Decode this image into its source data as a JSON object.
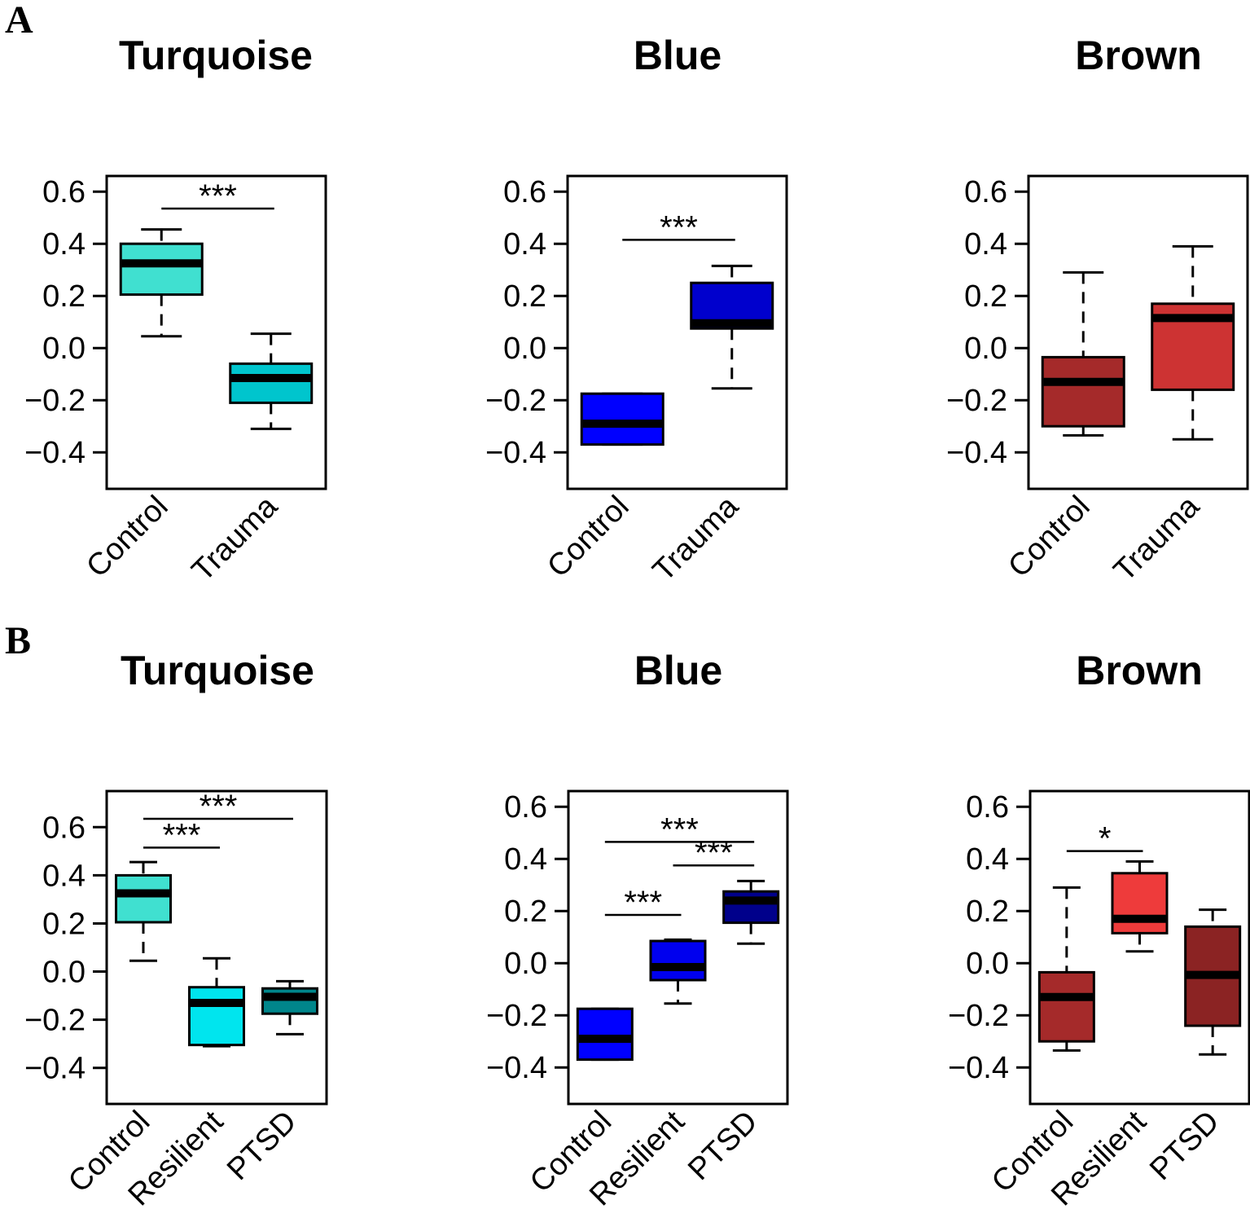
{
  "panels": [
    {
      "label": "A"
    },
    {
      "label": "B"
    }
  ],
  "chart_data": [
    {
      "type": "boxplot",
      "panel": "A",
      "title": "Turquoise",
      "ylim": [
        -0.54,
        0.66
      ],
      "yticks": [
        "0.6",
        "0.4",
        "0.2",
        "0.0",
        "−0.2",
        "−0.4"
      ],
      "ytick_values": [
        0.6,
        0.4,
        0.2,
        0.0,
        -0.2,
        -0.4
      ],
      "categories": [
        "Control",
        "Trauma"
      ],
      "boxes": [
        {
          "min": 0.045,
          "q1": 0.205,
          "median": 0.325,
          "q3": 0.4,
          "max": 0.455,
          "color": "#40E0D0"
        },
        {
          "min": -0.31,
          "q1": -0.21,
          "median": -0.115,
          "q3": -0.06,
          "max": 0.055,
          "color": "#00C5CD"
        }
      ],
      "significance": [
        {
          "from": 0,
          "to": 1,
          "label": "***",
          "y": 0.535
        }
      ]
    },
    {
      "type": "boxplot",
      "panel": "A",
      "title": "Blue",
      "ylim": [
        -0.54,
        0.66
      ],
      "yticks": [
        "0.6",
        "0.4",
        "0.2",
        "0.0",
        "−0.2",
        "−0.4"
      ],
      "ytick_values": [
        0.6,
        0.4,
        0.2,
        0.0,
        -0.2,
        -0.4
      ],
      "categories": [
        "Control",
        "Trauma"
      ],
      "boxes": [
        {
          "min": -0.37,
          "q1": -0.37,
          "median": -0.29,
          "q3": -0.175,
          "max": -0.175,
          "color": "#0000FF"
        },
        {
          "min": -0.155,
          "q1": 0.075,
          "median": 0.095,
          "q3": 0.25,
          "max": 0.315,
          "color": "#0000CD"
        }
      ],
      "significance": [
        {
          "from": 0,
          "to": 1,
          "label": "***",
          "y": 0.415
        }
      ]
    },
    {
      "type": "boxplot",
      "panel": "A",
      "title": "Brown",
      "ylim": [
        -0.54,
        0.66
      ],
      "yticks": [
        "0.6",
        "0.4",
        "0.2",
        "0.0",
        "−0.2",
        "−0.4"
      ],
      "ytick_values": [
        0.6,
        0.4,
        0.2,
        0.0,
        -0.2,
        -0.4
      ],
      "categories": [
        "Control",
        "Trauma"
      ],
      "boxes": [
        {
          "min": -0.335,
          "q1": -0.3,
          "median": -0.13,
          "q3": -0.035,
          "max": 0.29,
          "color": "#A52A2A"
        },
        {
          "min": -0.35,
          "q1": -0.16,
          "median": 0.115,
          "q3": 0.17,
          "max": 0.39,
          "color": "#CD3333"
        }
      ],
      "significance": []
    },
    {
      "type": "boxplot",
      "panel": "B",
      "title": "Turquoise",
      "ylim": [
        -0.55,
        0.75
      ],
      "yticks": [
        "0.6",
        "0.4",
        "0.2",
        "0.0",
        "−0.2",
        "−0.4"
      ],
      "ytick_values": [
        0.6,
        0.4,
        0.2,
        0.0,
        -0.2,
        -0.4
      ],
      "categories": [
        "Control",
        "Resilient",
        "PTSD"
      ],
      "boxes": [
        {
          "min": 0.045,
          "q1": 0.205,
          "median": 0.325,
          "q3": 0.4,
          "max": 0.455,
          "color": "#40E0D0"
        },
        {
          "min": -0.31,
          "q1": -0.305,
          "median": -0.13,
          "q3": -0.065,
          "max": 0.055,
          "color": "#00E5EE"
        },
        {
          "min": -0.26,
          "q1": -0.175,
          "median": -0.105,
          "q3": -0.07,
          "max": -0.04,
          "color": "#00868B"
        }
      ],
      "significance": [
        {
          "from": 0,
          "to": 2,
          "label": "***",
          "y": 0.635
        },
        {
          "from": 0,
          "to": 1,
          "label": "***",
          "y": 0.515
        }
      ]
    },
    {
      "type": "boxplot",
      "panel": "B",
      "title": "Blue",
      "ylim": [
        -0.54,
        0.66
      ],
      "yticks": [
        "0.6",
        "0.4",
        "0.2",
        "0.0",
        "−0.2",
        "−0.4"
      ],
      "ytick_values": [
        0.6,
        0.4,
        0.2,
        0.0,
        -0.2,
        -0.4
      ],
      "categories": [
        "Control",
        "Resilient",
        "PTSD"
      ],
      "boxes": [
        {
          "min": -0.37,
          "q1": -0.37,
          "median": -0.29,
          "q3": -0.175,
          "max": -0.175,
          "color": "#0000FF"
        },
        {
          "min": -0.155,
          "q1": -0.065,
          "median": -0.015,
          "q3": 0.085,
          "max": 0.09,
          "color": "#0000EE"
        },
        {
          "min": 0.075,
          "q1": 0.155,
          "median": 0.24,
          "q3": 0.275,
          "max": 0.315,
          "color": "#00008B"
        }
      ],
      "significance": [
        {
          "from": 0,
          "to": 2,
          "label": "***",
          "y": 0.465
        },
        {
          "from": 1,
          "to": 2,
          "label": "***",
          "y": 0.375
        },
        {
          "from": 0,
          "to": 1,
          "label": "***",
          "y": 0.185
        }
      ]
    },
    {
      "type": "boxplot",
      "panel": "B",
      "title": "Brown",
      "ylim": [
        -0.54,
        0.66
      ],
      "yticks": [
        "0.6",
        "0.4",
        "0.2",
        "0.0",
        "−0.2",
        "−0.4"
      ],
      "ytick_values": [
        0.6,
        0.4,
        0.2,
        0.0,
        -0.2,
        -0.4
      ],
      "categories": [
        "Control",
        "Resilient",
        "PTSD"
      ],
      "boxes": [
        {
          "min": -0.335,
          "q1": -0.3,
          "median": -0.13,
          "q3": -0.035,
          "max": 0.29,
          "color": "#A52A2A"
        },
        {
          "min": 0.045,
          "q1": 0.115,
          "median": 0.17,
          "q3": 0.345,
          "max": 0.39,
          "color": "#EE3B3B"
        },
        {
          "min": -0.35,
          "q1": -0.24,
          "median": -0.045,
          "q3": 0.14,
          "max": 0.205,
          "color": "#8B2323"
        }
      ],
      "significance": [
        {
          "from": 0,
          "to": 1,
          "label": "*",
          "y": 0.43
        }
      ]
    }
  ]
}
